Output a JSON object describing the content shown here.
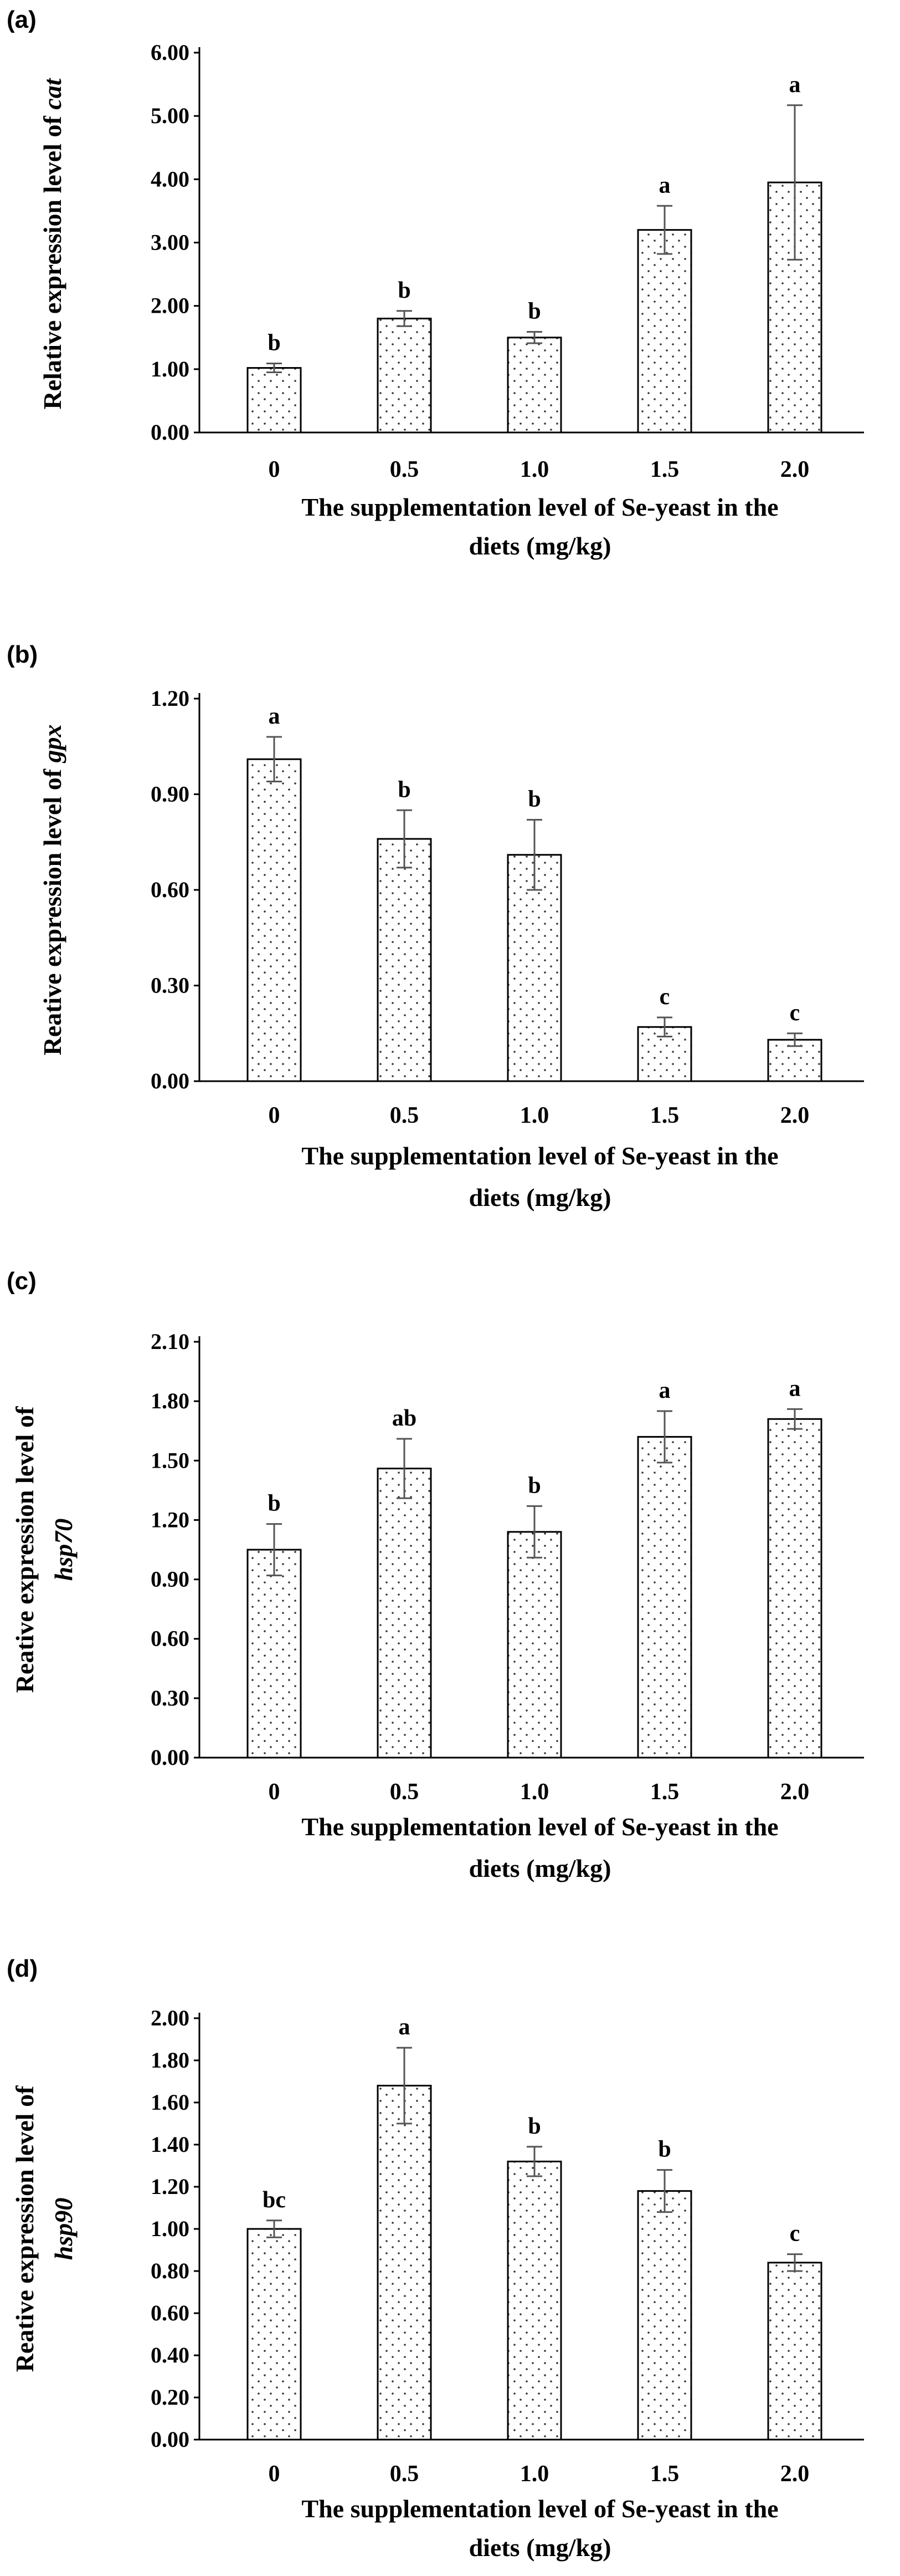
{
  "chart_data": [
    {
      "type": "bar",
      "panel": "(a)",
      "categories": [
        "0",
        "0.5",
        "1.0",
        "1.5",
        "2.0"
      ],
      "values": [
        1.02,
        1.8,
        1.5,
        3.2,
        3.95
      ],
      "errors": [
        0.07,
        0.12,
        0.09,
        0.38,
        1.22
      ],
      "significance": [
        "b",
        "b",
        "b",
        "a",
        "a"
      ],
      "yticks": [
        "0.00",
        "1.00",
        "2.00",
        "3.00",
        "4.00",
        "5.00",
        "6.00"
      ],
      "ylim": [
        0,
        6
      ],
      "ylabel_main": "Relative expression level of ",
      "ylabel_gene": "cat",
      "xlabel_lines": [
        "The supplementation level of Se-yeast in the",
        "diets (mg/kg)"
      ]
    },
    {
      "type": "bar",
      "panel": "(b)",
      "categories": [
        "0",
        "0.5",
        "1.0",
        "1.5",
        "2.0"
      ],
      "values": [
        1.01,
        0.76,
        0.71,
        0.17,
        0.13
      ],
      "errors": [
        0.07,
        0.09,
        0.11,
        0.03,
        0.02
      ],
      "significance": [
        "a",
        "b",
        "b",
        "c",
        "c"
      ],
      "yticks": [
        "0.00",
        "0.30",
        "0.60",
        "0.90",
        "1.20"
      ],
      "ylim": [
        0,
        1.2
      ],
      "ylabel_main": "Reative expression level of ",
      "ylabel_gene": "gpx",
      "xlabel_lines": [
        "The supplementation level of Se-yeast in the",
        "diets (mg/kg)"
      ]
    },
    {
      "type": "bar",
      "panel": "(c)",
      "categories": [
        "0",
        "0.5",
        "1.0",
        "1.5",
        "2.0"
      ],
      "values": [
        1.05,
        1.46,
        1.14,
        1.62,
        1.71
      ],
      "errors": [
        0.13,
        0.15,
        0.13,
        0.13,
        0.05
      ],
      "significance": [
        "b",
        "ab",
        "b",
        "a",
        "a"
      ],
      "yticks": [
        "0.00",
        "0.30",
        "0.60",
        "0.90",
        "1.20",
        "1.50",
        "1.80",
        "2.10"
      ],
      "ylim": [
        0,
        2.1
      ],
      "ylabel_main": "Reative expression level of",
      "ylabel_gene": "hsp70",
      "xlabel_lines": [
        "The supplementation level of Se-yeast in the",
        "diets  (mg/kg)"
      ]
    },
    {
      "type": "bar",
      "panel": "(d)",
      "categories": [
        "0",
        "0.5",
        "1.0",
        "1.5",
        "2.0"
      ],
      "values": [
        1.0,
        1.68,
        1.32,
        1.18,
        0.84
      ],
      "errors": [
        0.04,
        0.18,
        0.07,
        0.1,
        0.04
      ],
      "significance": [
        "bc",
        "a",
        "b",
        "b",
        "c"
      ],
      "yticks": [
        "0.00",
        "0.20",
        "0.40",
        "0.60",
        "0.80",
        "1.00",
        "1.20",
        "1.40",
        "1.60",
        "1.80",
        "2.00"
      ],
      "ylim": [
        0,
        2.0
      ],
      "ylabel_main": "Reative expression level of",
      "ylabel_gene": "hsp90",
      "xlabel_lines": [
        "The supplementation level of Se-yeast in the",
        "diets (mg/kg)"
      ]
    }
  ]
}
